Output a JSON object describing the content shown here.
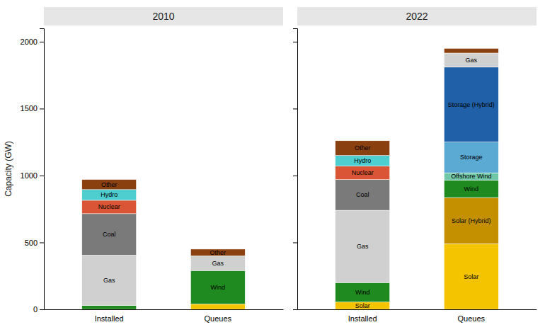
{
  "chart_data": [
    {
      "type": "bar",
      "stacked": true,
      "title": "2010",
      "ylabel": "Capacity (GW)",
      "categories": [
        "Installed",
        "Queues"
      ],
      "ylim": [
        0,
        2100
      ],
      "yticks": [
        0,
        500,
        1000,
        1500,
        2000
      ],
      "series": [
        {
          "name": "Solar",
          "color": "#f5c400",
          "values": [
            null,
            40
          ]
        },
        {
          "name": "Wind",
          "color": "#1f8a1f",
          "values": [
            30,
            250
          ]
        },
        {
          "name": "Gas",
          "color": "#d0d0d0",
          "values": [
            375,
            110
          ]
        },
        {
          "name": "Coal",
          "color": "#7a7a7a",
          "values": [
            310,
            null
          ]
        },
        {
          "name": "Nuclear",
          "color": "#d95535",
          "values": [
            100,
            null
          ]
        },
        {
          "name": "Hydro",
          "color": "#4ecece",
          "values": [
            80,
            null
          ]
        },
        {
          "name": "Other",
          "color": "#8b4010",
          "values": [
            75,
            50
          ]
        }
      ]
    },
    {
      "type": "bar",
      "stacked": true,
      "title": "2022",
      "tick_labels": "x",
      "categories": [
        "Installed",
        "Queues"
      ],
      "ylim": [
        0,
        2100
      ],
      "yticks": [
        0,
        500,
        1000,
        1500,
        2000
      ],
      "series": [
        {
          "name": "Solar",
          "color": "#f5c400",
          "values": [
            55,
            490
          ]
        },
        {
          "name": "Solar (Hybrid)",
          "color": "#c49000",
          "values": [
            null,
            345
          ]
        },
        {
          "name": "Wind",
          "color": "#1f8a1f",
          "values": [
            145,
            130
          ]
        },
        {
          "name": "Offshore Wind",
          "color": "#70c8a8",
          "values": [
            null,
            55
          ]
        },
        {
          "name": "Storage",
          "color": "#5baad4",
          "values": [
            null,
            230
          ]
        },
        {
          "name": "Storage (Hybrid)",
          "color": "#2060a8",
          "values": [
            null,
            560
          ]
        },
        {
          "name": "Gas",
          "color": "#d0d0d0",
          "values": [
            540,
            105
          ]
        },
        {
          "name": "Coal",
          "color": "#7a7a7a",
          "values": [
            230,
            null
          ]
        },
        {
          "name": "Nuclear",
          "color": "#d95535",
          "values": [
            100,
            null
          ]
        },
        {
          "name": "Hydro",
          "color": "#4ecece",
          "values": [
            80,
            null
          ]
        },
        {
          "name": "Other",
          "color": "#8b4010",
          "values": [
            110,
            35
          ]
        }
      ]
    }
  ]
}
